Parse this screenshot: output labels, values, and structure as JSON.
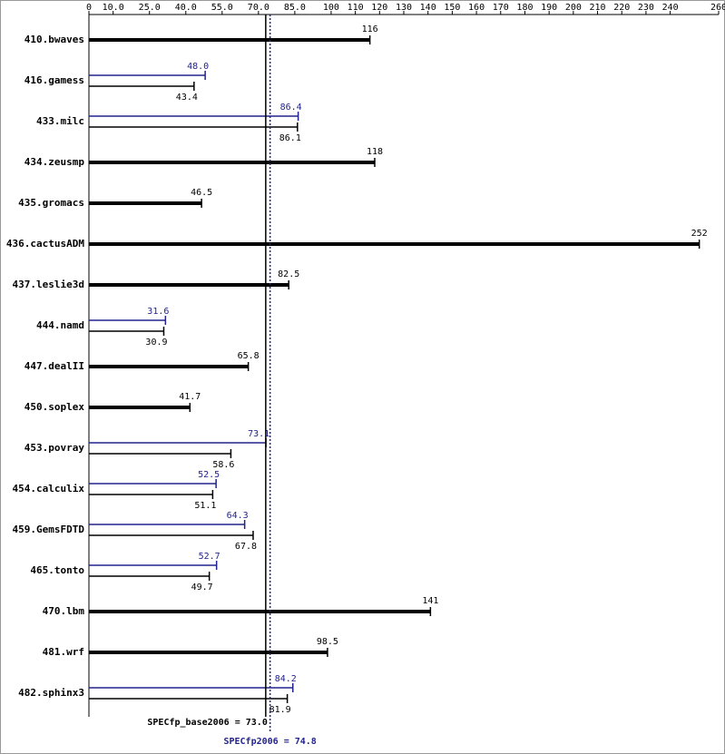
{
  "chart_data": {
    "type": "bar",
    "categories": [
      "410.bwaves",
      "416.gamess",
      "433.milc",
      "434.zeusmp",
      "435.gromacs",
      "436.cactusADM",
      "437.leslie3d",
      "444.namd",
      "447.dealII",
      "450.soplex",
      "453.povray",
      "454.calculix",
      "459.GemsFDTD",
      "465.tonto",
      "470.lbm",
      "481.wrf",
      "482.sphinx3"
    ],
    "series": [
      {
        "color": "#000000",
        "values": [
          116,
          43.4,
          86.1,
          118,
          46.5,
          252,
          82.5,
          30.9,
          65.8,
          41.7,
          58.6,
          51.1,
          67.8,
          49.7,
          141,
          98.5,
          81.9
        ]
      },
      {
        "color": "#23238e",
        "values": [
          null,
          48.0,
          86.4,
          null,
          null,
          null,
          null,
          31.6,
          null,
          null,
          73.1,
          52.5,
          64.3,
          52.7,
          null,
          null,
          84.2
        ],
        "value_labels": [
          null,
          "48.0",
          "86.4",
          null,
          null,
          null,
          null,
          "31.6",
          null,
          null,
          "73.1",
          "52.5",
          "64.3",
          "52.7",
          null,
          null,
          "84.2"
        ]
      }
    ],
    "xlim": [
      0,
      260
    ],
    "xticks": [
      0,
      {
        "value": 10,
        "label": "10.0"
      },
      {
        "value": 25,
        "label": "25.0"
      },
      {
        "value": 40,
        "label": "40.0"
      },
      {
        "value": 55,
        "label": "55.0"
      },
      {
        "value": 70,
        "label": "70.0"
      },
      {
        "value": 85,
        "label": "85.0"
      },
      100,
      110,
      120,
      130,
      140,
      150,
      160,
      170,
      180,
      190,
      200,
      210,
      220,
      230,
      240,
      260
    ],
    "annotations": [
      {
        "text": "SPECfp_base2006 = 73.0",
        "value": 73.0,
        "color": "#000000"
      },
      {
        "text": "SPECfp2006 = 74.8",
        "value": 74.8,
        "color": "#23238e"
      }
    ]
  }
}
